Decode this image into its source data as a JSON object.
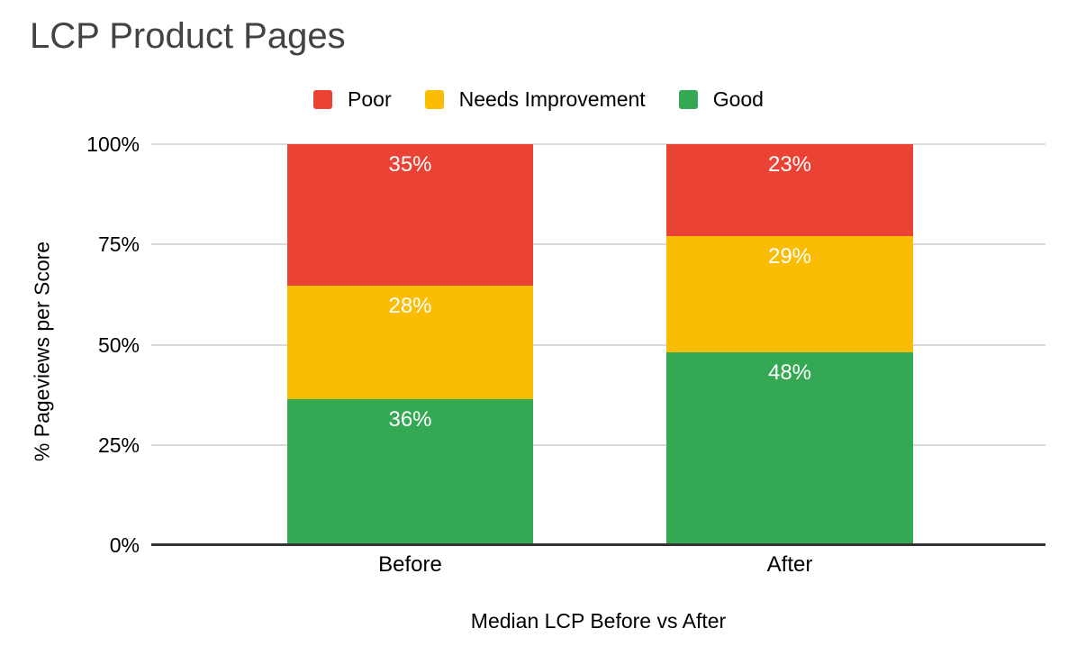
{
  "chart_data": {
    "type": "bar",
    "stacked": "percent",
    "title": "LCP Product Pages",
    "xlabel": "Median LCP Before vs After",
    "ylabel": "% Pageviews per Score",
    "categories": [
      "Before",
      "After"
    ],
    "series": [
      {
        "name": "Poor",
        "color": "#EA4335",
        "values": [
          35,
          23
        ]
      },
      {
        "name": "Needs Improvement",
        "color": "#FBBC04",
        "values": [
          28,
          29
        ]
      },
      {
        "name": "Good",
        "color": "#34A853",
        "values": [
          36,
          48
        ]
      }
    ],
    "segment_labels": [
      [
        "35%",
        "28%",
        "36%"
      ],
      [
        "23%",
        "29%",
        "48%"
      ]
    ],
    "y_ticks": [
      "0%",
      "25%",
      "50%",
      "75%",
      "100%"
    ],
    "ylim": [
      0,
      100
    ],
    "grid": true,
    "legend_position": "top"
  },
  "colors": {
    "background": "#ffffff",
    "title_text": "#434343",
    "axis_text": "#000000",
    "segment_label_text": "#ffffff",
    "gridline": "#d9d9d9",
    "axis_line": "#333333"
  }
}
